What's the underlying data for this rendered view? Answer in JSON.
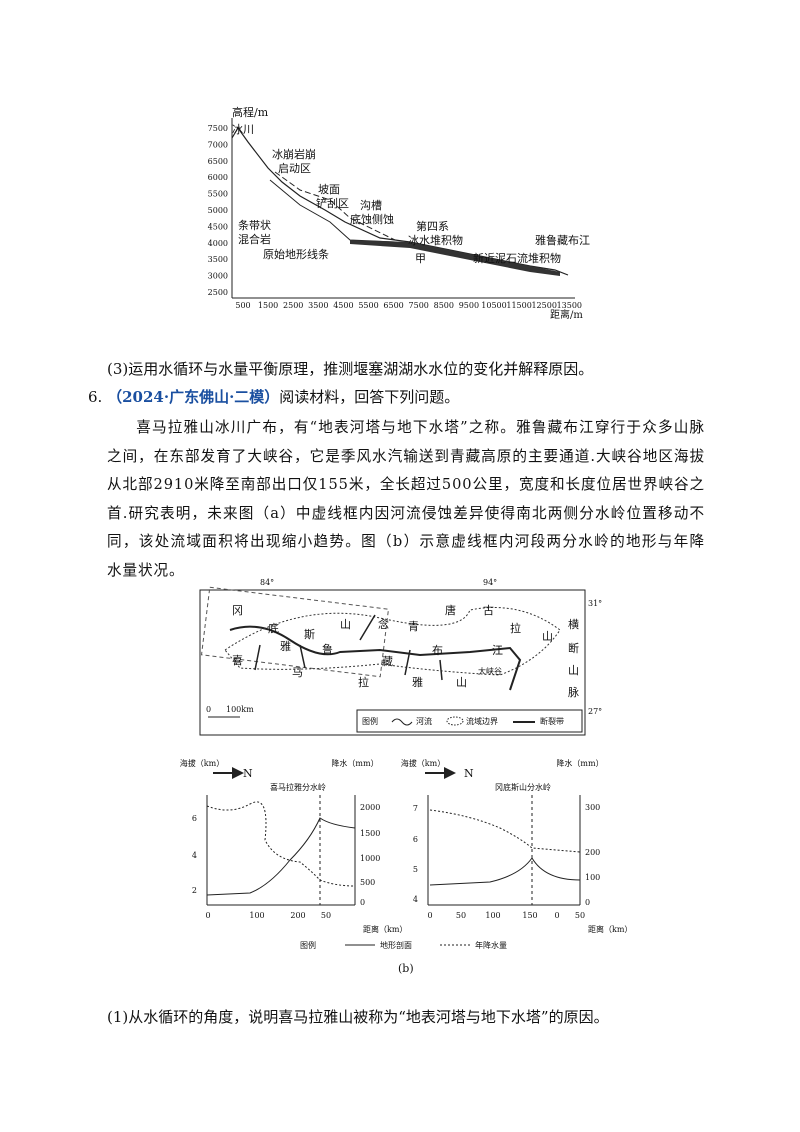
{
  "figure_profile": {
    "y_axis_label": "高程/m",
    "yticks": [
      "7500",
      "7000",
      "6500",
      "6000",
      "5500",
      "5000",
      "4500",
      "4000",
      "3500",
      "3000",
      "2500"
    ],
    "xticks": [
      "500",
      "1500",
      "2500",
      "3500",
      "4500",
      "5500",
      "6500",
      "7500",
      "8500",
      "9500",
      "10500",
      "11500",
      "12500",
      "13500"
    ],
    "x_axis_label": "距离/m",
    "labels": [
      "冰川",
      "冰崩岩崩",
      "启动区",
      "坡面",
      "铲刮区",
      "沟槽",
      "底蚀侧蚀",
      "第四系",
      "冰水堆积物",
      "条带状",
      "混合岩",
      "原始地形线条",
      "甲",
      "雅鲁藏布江",
      "新近泥石流堆积物"
    ]
  },
  "question_3": "(3)运用水循环与水量平衡原理，推测堰塞湖湖水水位的变化并解释原因。",
  "question_6": {
    "number": "6.",
    "source": "（2024·广东佛山·二模）",
    "prompt": "阅读材料，回答下列问题。"
  },
  "material": "喜马拉雅山冰川广布，有“地表河塔与地下水塔”之称。雅鲁藏布江穿行于众多山脉之间，在东部发育了大峡谷，它是季风水汽输送到青藏高原的主要通道.大峡谷地区海拔从北部2910米降至南部出口仅155米，全长超过500公里，宽度和长度位居世界峡谷之首.研究表明，未来图（a）中虚线框内因河流侵蚀差异使得南北两侧分水岭位置移动不同，该处流域面积将出现缩小趋势。图（b）示意虚线框内河段两分水岭的地形与年降水量状况。",
  "map": {
    "coords": [
      "84°",
      "94°",
      "31°",
      "27°"
    ],
    "labels": [
      "冈",
      "底",
      "斯",
      "山",
      "念",
      "青",
      "唐",
      "古",
      "拉",
      "山",
      "横",
      "断",
      "山",
      "脉",
      "喜",
      "马",
      "拉",
      "雅",
      "山",
      "雅",
      "鲁",
      "藏",
      "布",
      "江",
      "大峡谷"
    ],
    "scale": [
      "0",
      "100km"
    ],
    "legend": [
      "图例",
      "河流",
      "流域边界",
      "断裂带"
    ]
  },
  "chart_left": {
    "y_label": "海拔（km）",
    "y2_label": "降水（mm）",
    "north": "N",
    "divide": "喜马拉雅分水岭",
    "yticks": [
      "6",
      "4",
      "2"
    ],
    "y2ticks": [
      "2000",
      "1500",
      "1000",
      "500",
      "0"
    ],
    "xticks": [
      "0",
      "100",
      "200",
      "50"
    ],
    "x_label": "距离（km）"
  },
  "chart_right": {
    "y_label": "海拔（km）",
    "y2_label": "降水（mm）",
    "north": "N",
    "divide": "冈底斯山分水岭",
    "yticks": [
      "7",
      "6",
      "5",
      "4"
    ],
    "y2ticks": [
      "300",
      "200",
      "100",
      "0"
    ],
    "xticks": [
      "0",
      "50",
      "100",
      "150",
      "0",
      "50"
    ],
    "x_label": "距离（km）"
  },
  "legend_b": [
    "图例",
    "地形剖面",
    "年降水量"
  ],
  "caption_b": "(b)",
  "question_1": "(1)从水循环的角度，说明喜马拉雅山被称为“地表河塔与地下水塔”的原因。"
}
